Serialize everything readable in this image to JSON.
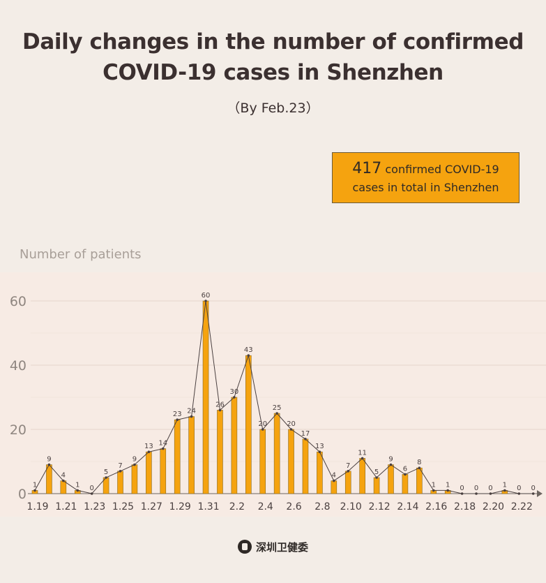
{
  "header": {
    "title_line1": "Daily changes in the number of  confirmed",
    "title_line2": "COVID-19 cases in Shenzhen",
    "subtitle": "（By Feb.23）"
  },
  "callout": {
    "number": "417",
    "text_line1": " confirmed COVID-19",
    "text_line2": "cases in total in Shenzhen"
  },
  "footer": {
    "source": "深圳卫健委",
    "logo_icon": "health-commission-logo-icon"
  },
  "colors": {
    "bar": "#f5a30f",
    "bar_edge": "#8a6a20",
    "line": "#4a4040",
    "grid": "#e6d6cc",
    "axis_text": "#4a4040",
    "background": "#f3ede7"
  },
  "chart_data": {
    "type": "bar",
    "ylabel": "Number of patients",
    "xlabel": "",
    "ylim": [
      0,
      65
    ],
    "yticks": [
      0,
      20,
      40,
      60
    ],
    "grid": true,
    "overlay_line": true,
    "categories": [
      "1.19",
      "1.20",
      "1.21",
      "1.22",
      "1.23",
      "1.24",
      "1.25",
      "1.26",
      "1.27",
      "1.28",
      "1.29",
      "1.30",
      "1.31",
      "2.1",
      "2.2",
      "2.3",
      "2.4",
      "2.5",
      "2.6",
      "2.7",
      "2.8",
      "2.9",
      "2.10",
      "2.11",
      "2.12",
      "2.13",
      "2.14",
      "2.15",
      "2.16",
      "2.17",
      "2.18",
      "2.19",
      "2.20",
      "2.21",
      "2.22",
      "2.23"
    ],
    "tick_labels": [
      "1.19",
      "1.21",
      "1.23",
      "1.25",
      "1.27",
      "1.29",
      "1.31",
      "2.2",
      "2.4",
      "2.6",
      "2.8",
      "2.10",
      "2.12",
      "2.14",
      "2.16",
      "2.18",
      "2.20",
      "2.22"
    ],
    "values": [
      1,
      9,
      4,
      1,
      0,
      5,
      7,
      9,
      13,
      14,
      23,
      24,
      60,
      26,
      30,
      43,
      20,
      25,
      20,
      17,
      13,
      4,
      7,
      11,
      5,
      9,
      6,
      8,
      1,
      1,
      0,
      0,
      0,
      1,
      0,
      0
    ]
  }
}
